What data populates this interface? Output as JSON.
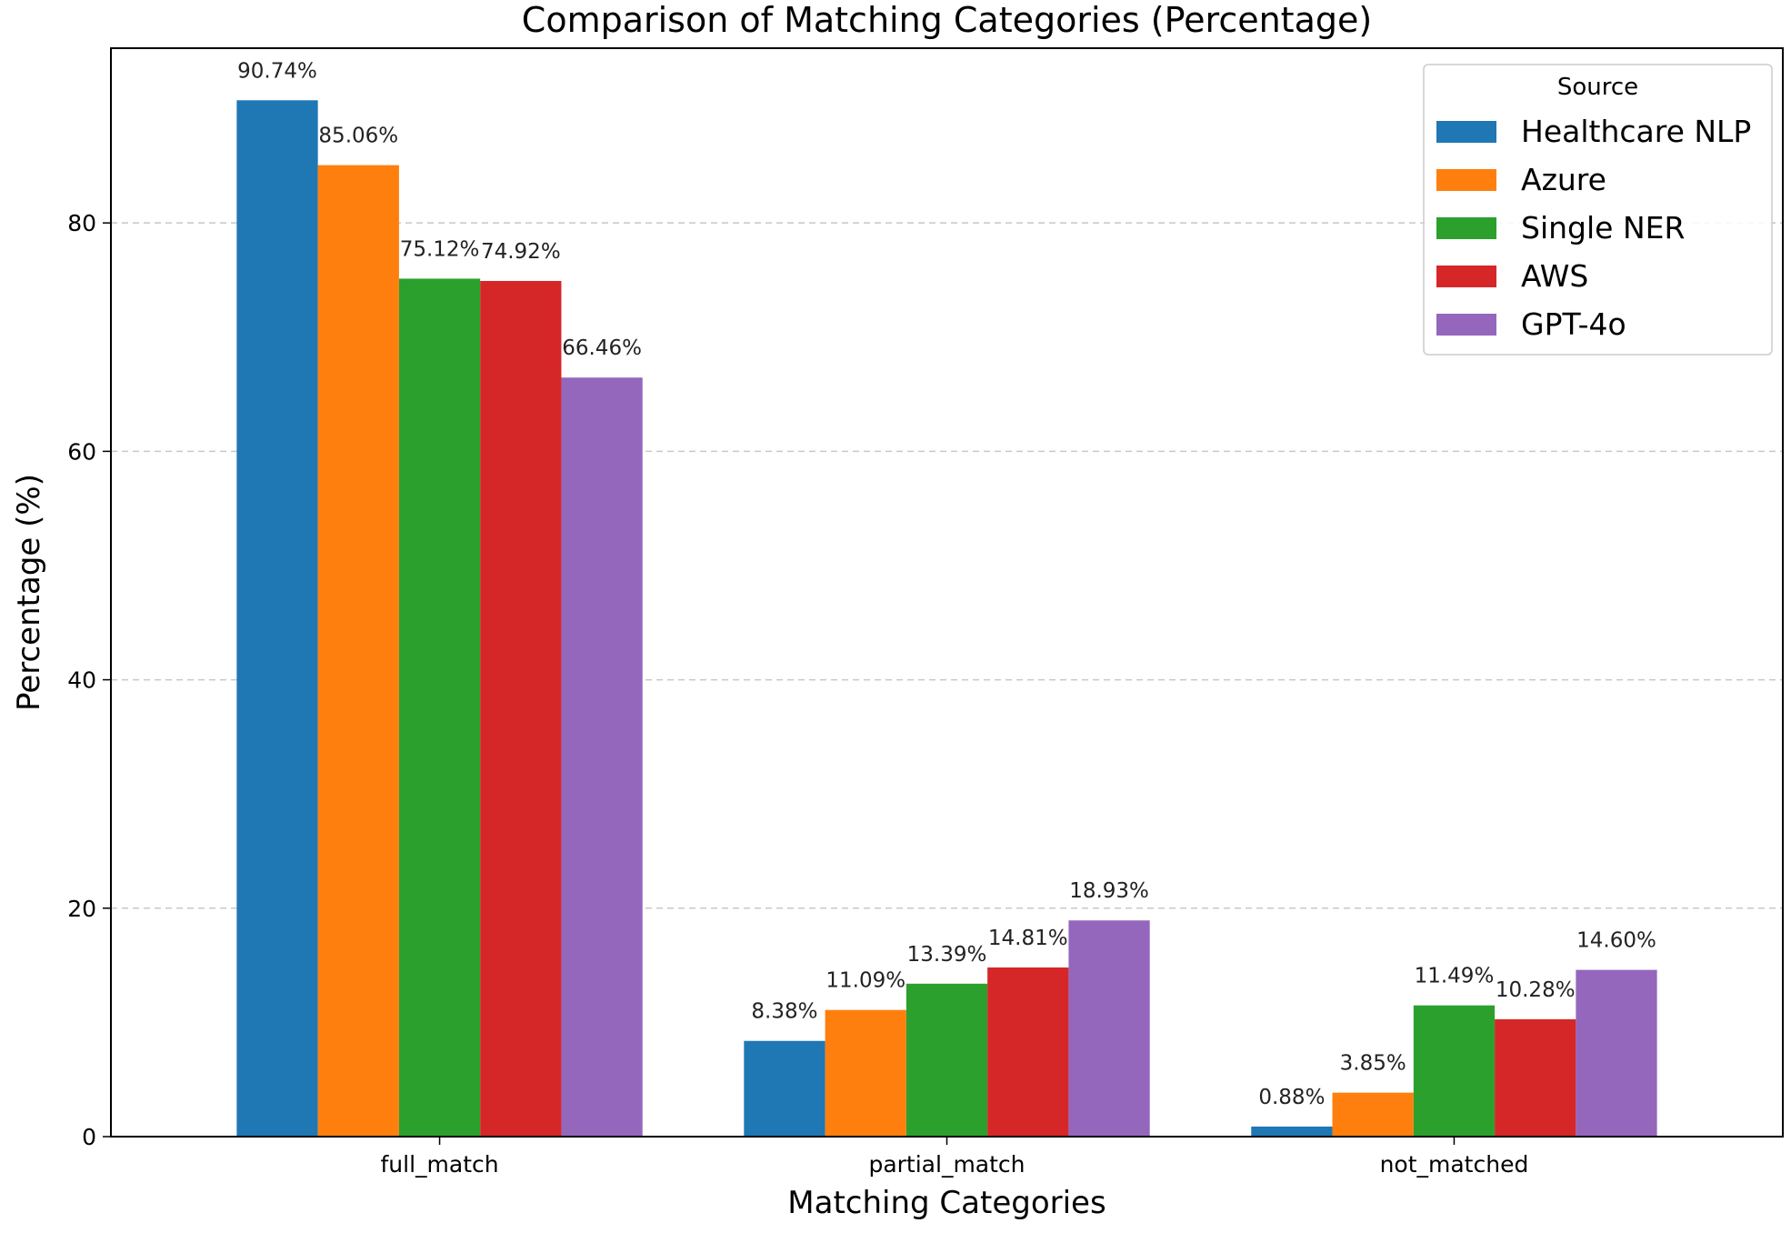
{
  "chart_data": {
    "type": "bar",
    "title": "Comparison of Matching Categories (Percentage)",
    "xlabel": "Matching Categories",
    "ylabel": "Percentage (%)",
    "categories": [
      "full_match",
      "partial_match",
      "not_matched"
    ],
    "ylim": [
      0,
      95.3
    ],
    "yticks": [
      0,
      20,
      40,
      60,
      80
    ],
    "grid": "y-dashed",
    "legend_title": "Source",
    "legend_position": "top-right",
    "series": [
      {
        "name": "Healthcare NLP",
        "color": "#1f77b4",
        "values": [
          90.74,
          8.38,
          0.88
        ],
        "labels": [
          "90.74%",
          "8.38%",
          "0.88%"
        ]
      },
      {
        "name": "Azure",
        "color": "#ff7f0e",
        "values": [
          85.06,
          11.09,
          3.85
        ],
        "labels": [
          "85.06%",
          "11.09%",
          "3.85%"
        ]
      },
      {
        "name": "Single NER",
        "color": "#2ca02c",
        "values": [
          75.12,
          13.39,
          11.49
        ],
        "labels": [
          "75.12%",
          "13.39%",
          "11.49%"
        ]
      },
      {
        "name": "AWS",
        "color": "#d62728",
        "values": [
          74.92,
          14.81,
          10.28
        ],
        "labels": [
          "74.92%",
          "14.81%",
          "10.28%"
        ]
      },
      {
        "name": "GPT-4o",
        "color": "#9467bd",
        "values": [
          66.46,
          18.93,
          14.6
        ],
        "labels": [
          "66.46%",
          "18.93%",
          "14.60%"
        ]
      }
    ]
  }
}
